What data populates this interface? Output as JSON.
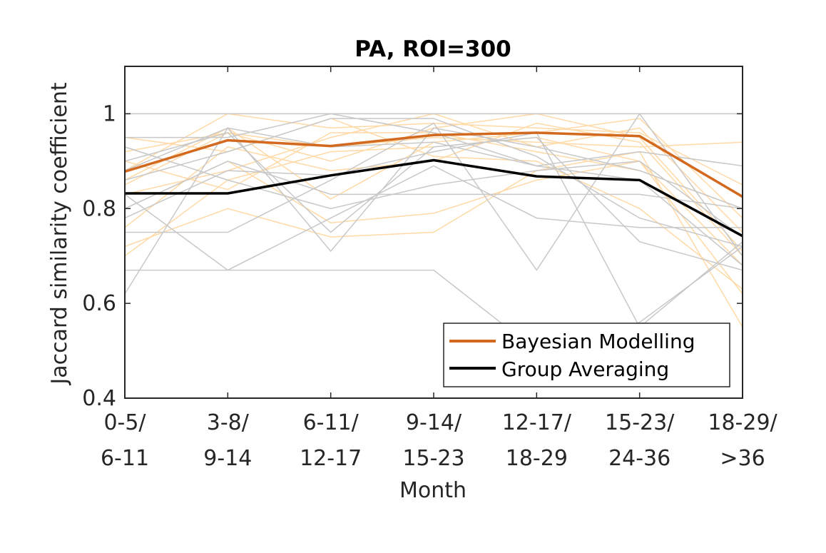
{
  "chart_data": {
    "type": "line",
    "title": "PA, ROI=300",
    "xlabel": "Month",
    "ylabel": "Jaccard similarity coefficient",
    "ylim": [
      0.4,
      1.1
    ],
    "yticks": [
      0.4,
      0.6,
      0.8,
      1.0
    ],
    "ytick_labels": [
      "0.4",
      "0.6",
      "0.8",
      "1"
    ],
    "categories": [
      [
        "0-5/",
        "6-11"
      ],
      [
        "3-8/",
        "9-14"
      ],
      [
        "6-11/",
        "12-17"
      ],
      [
        "9-14/",
        "15-23"
      ],
      [
        "12-17/",
        "18-29"
      ],
      [
        "15-23/",
        "24-36"
      ],
      [
        "18-29/",
        ">36"
      ]
    ],
    "grid": false,
    "legend_position": "bottom-right",
    "series": [
      {
        "name": "Bayesian Modelling",
        "color": "#d2691e",
        "values": [
          0.878,
          0.944,
          0.932,
          0.955,
          0.96,
          0.953,
          0.825
        ]
      },
      {
        "name": "Group Averaging",
        "color": "#000000",
        "values": [
          0.832,
          0.832,
          0.87,
          0.902,
          0.868,
          0.86,
          0.742
        ]
      }
    ],
    "background_series": [
      {
        "color": "#ffd9a6",
        "values": [
          1.0,
          1.0,
          1.0,
          1.0,
          1.0,
          1.0,
          1.0
        ]
      },
      {
        "color": "#ffd9a6",
        "values": [
          0.92,
          0.96,
          0.93,
          0.95,
          0.94,
          0.93,
          0.94
        ]
      },
      {
        "color": "#ffd9a6",
        "values": [
          0.85,
          0.96,
          0.9,
          0.97,
          1.0,
          0.95,
          0.71
        ]
      },
      {
        "color": "#ffd9a6",
        "values": [
          0.8,
          0.9,
          0.77,
          0.79,
          0.86,
          0.9,
          0.62
        ]
      },
      {
        "color": "#ffd9a6",
        "values": [
          0.72,
          0.8,
          0.74,
          0.75,
          0.88,
          0.92,
          0.55
        ]
      },
      {
        "color": "#ffd9a6",
        "values": [
          0.88,
          1.0,
          0.97,
          0.98,
          0.97,
          0.96,
          0.85
        ]
      },
      {
        "color": "#ffd9a6",
        "values": [
          0.7,
          0.86,
          0.92,
          0.93,
          0.95,
          0.9,
          0.68
        ]
      },
      {
        "color": "#ffd9a6",
        "values": [
          0.95,
          0.92,
          0.99,
          0.91,
          0.9,
          0.8,
          0.63
        ]
      },
      {
        "color": "#ffd9a6",
        "values": [
          0.83,
          0.88,
          0.95,
          1.0,
          0.93,
          0.97,
          0.75
        ]
      },
      {
        "color": "#ffd9a6",
        "values": [
          0.76,
          0.93,
          0.88,
          0.9,
          0.98,
          0.94,
          0.7
        ]
      },
      {
        "color": "#ffd9a6",
        "values": [
          0.9,
          0.84,
          0.96,
          0.96,
          0.92,
          0.88,
          0.8
        ]
      },
      {
        "color": "#ffd9a6",
        "values": [
          0.86,
          0.97,
          0.82,
          0.94,
          0.96,
          0.99,
          0.78
        ]
      },
      {
        "color": "#c8c8c8",
        "values": [
          1.0,
          1.0,
          1.0,
          1.0,
          1.0,
          1.0,
          1.0
        ]
      },
      {
        "color": "#c8c8c8",
        "values": [
          0.95,
          0.95,
          1.0,
          0.96,
          0.89,
          0.92,
          0.89
        ]
      },
      {
        "color": "#c8c8c8",
        "values": [
          0.67,
          0.67,
          0.67,
          0.67,
          0.5,
          0.56,
          0.72
        ]
      },
      {
        "color": "#c8c8c8",
        "values": [
          0.62,
          0.97,
          0.71,
          0.97,
          0.93,
          0.88,
          0.8
        ]
      },
      {
        "color": "#c8c8c8",
        "values": [
          0.75,
          0.75,
          0.86,
          0.98,
          0.67,
          1.0,
          0.7
        ]
      },
      {
        "color": "#c8c8c8",
        "values": [
          0.83,
          0.67,
          0.78,
          0.89,
          0.78,
          0.76,
          0.76
        ]
      },
      {
        "color": "#c8c8c8",
        "values": [
          0.9,
          0.96,
          0.75,
          0.93,
          0.95,
          0.73,
          0.67
        ]
      },
      {
        "color": "#c8c8c8",
        "values": [
          0.8,
          0.9,
          0.83,
          0.83,
          0.83,
          0.83,
          0.8
        ]
      },
      {
        "color": "#c8c8c8",
        "values": [
          0.86,
          0.92,
          0.99,
          0.99,
          0.91,
          0.78,
          0.72
        ]
      },
      {
        "color": "#c8c8c8",
        "values": [
          0.93,
          0.86,
          0.8,
          0.85,
          0.88,
          0.9,
          0.74
        ]
      },
      {
        "color": "#c8c8c8",
        "values": [
          0.78,
          0.88,
          0.87,
          0.92,
          0.96,
          0.55,
          0.73
        ]
      },
      {
        "color": "#c8c8c8",
        "values": [
          0.88,
          0.97,
          0.93,
          0.94,
          0.89,
          0.86,
          0.68
        ]
      }
    ]
  }
}
